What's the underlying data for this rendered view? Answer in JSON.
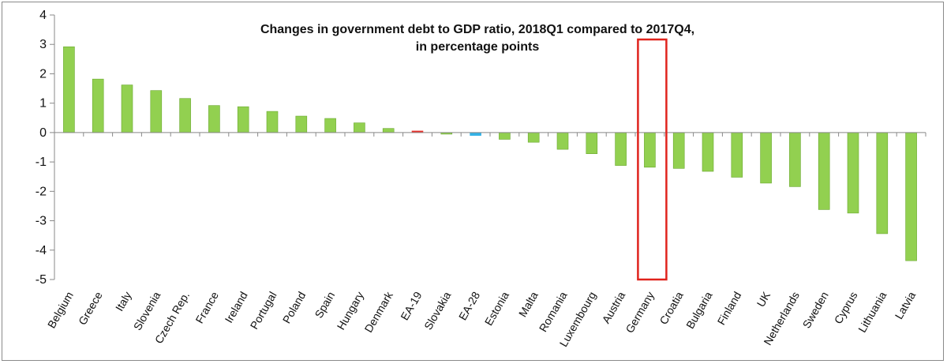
{
  "chart_data": {
    "type": "bar",
    "title": "Changes in government debt to GDP ratio, 2018Q1 compared to 2017Q4,",
    "subtitle": "in percentage points",
    "xlabel": "",
    "ylabel": "",
    "ylim": [
      -5,
      4
    ],
    "yticks": [
      4,
      3,
      2,
      1,
      0,
      -1,
      -2,
      -3,
      -4,
      -5
    ],
    "grid": false,
    "categories": [
      "Belgium",
      "Greece",
      "Italy",
      "Slovenia",
      "Czech Rep.",
      "France",
      "Ireland",
      "Portugal",
      "Poland",
      "Spain",
      "Hungary",
      "Denmark",
      "EA-19",
      "Slovakia",
      "EA-28",
      "Estonia",
      "Malta",
      "Romania",
      "Luxembourg",
      "Austria",
      "Germany",
      "Croatia",
      "Bulgaria",
      "Finland",
      "UK",
      "Netherlands",
      "Sweden",
      "Cyprus",
      "Lithuania",
      "Latvia"
    ],
    "values": [
      2.92,
      1.82,
      1.62,
      1.43,
      1.16,
      0.92,
      0.88,
      0.72,
      0.56,
      0.48,
      0.33,
      0.14,
      0.03,
      -0.05,
      -0.1,
      -0.23,
      -0.33,
      -0.57,
      -0.72,
      -1.12,
      -1.18,
      -1.22,
      -1.32,
      -1.52,
      -1.72,
      -1.84,
      -2.62,
      -2.74,
      -3.44,
      -4.36
    ],
    "highlight_category": "Germany",
    "colors": {
      "bar": "#92d050",
      "bar_border": "#6aa82e",
      "ea19": "#e8302a",
      "ea28": "#33b2e6",
      "highlight_box": "#e0231c",
      "axis": "#888888",
      "text": "#111111"
    }
  }
}
